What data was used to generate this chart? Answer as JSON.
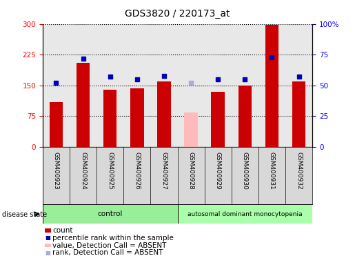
{
  "title": "GDS3820 / 220173_at",
  "samples": [
    "GSM400923",
    "GSM400924",
    "GSM400925",
    "GSM400926",
    "GSM400927",
    "GSM400928",
    "GSM400929",
    "GSM400930",
    "GSM400931",
    "GSM400932"
  ],
  "counts": [
    110,
    205,
    140,
    143,
    160,
    85,
    135,
    150,
    297,
    160
  ],
  "ranks": [
    52,
    72,
    57,
    55,
    58,
    52,
    55,
    55,
    73,
    57
  ],
  "absent_flags": [
    false,
    false,
    false,
    false,
    false,
    true,
    false,
    false,
    false,
    false
  ],
  "control_count": 5,
  "groups": [
    "control",
    "autosomal dominant monocytopenia"
  ],
  "bar_color_present": "#cc0000",
  "bar_color_absent": "#ffbbbb",
  "dot_color_present": "#0000bb",
  "dot_color_absent": "#aaaadd",
  "ylim_left": [
    0,
    300
  ],
  "ylim_right": [
    0,
    100
  ],
  "yticks_left": [
    0,
    75,
    150,
    225,
    300
  ],
  "yticks_right": [
    0,
    25,
    50,
    75,
    100
  ],
  "plot_bg": "#e8e8e8",
  "label_bg": "#d8d8d8",
  "ctrl_color": "#99ee99",
  "disease_color": "#aaffaa",
  "bar_width": 0.5,
  "title_fontsize": 10,
  "tick_fontsize": 7.5,
  "label_fontsize": 6.5,
  "legend_fontsize": 7.5
}
